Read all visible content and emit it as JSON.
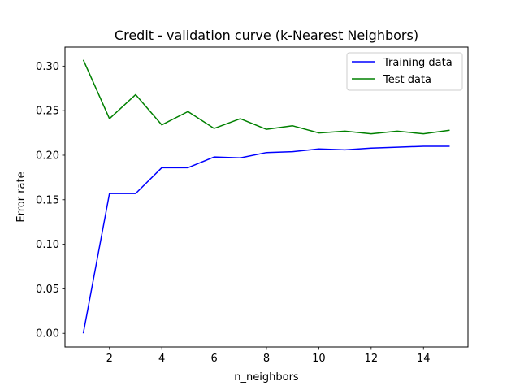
{
  "chart_data": {
    "type": "line",
    "title": "Credit - validation curve (k-Nearest Neighbors)",
    "xlabel": "n_neighbors",
    "ylabel": "Error rate",
    "xlim": [
      0.3,
      15.7
    ],
    "ylim": [
      -0.0153,
      0.3213
    ],
    "xticks": [
      2,
      4,
      6,
      8,
      10,
      12,
      14
    ],
    "yticks": [
      0.0,
      0.05,
      0.1,
      0.15,
      0.2,
      0.25,
      0.3
    ],
    "ytick_labels": [
      "0.00",
      "0.05",
      "0.10",
      "0.15",
      "0.20",
      "0.25",
      "0.30"
    ],
    "grid": false,
    "legend_position": "top-right",
    "x": [
      1,
      2,
      3,
      4,
      5,
      6,
      7,
      8,
      9,
      10,
      11,
      12,
      13,
      14,
      15
    ],
    "series": [
      {
        "name": "Training data",
        "color": "#0000ff",
        "values": [
          0.0,
          0.157,
          0.157,
          0.186,
          0.186,
          0.198,
          0.197,
          0.203,
          0.204,
          0.207,
          0.206,
          0.208,
          0.209,
          0.21,
          0.21
        ]
      },
      {
        "name": "Test data",
        "color": "#008000",
        "values": [
          0.307,
          0.241,
          0.268,
          0.234,
          0.249,
          0.23,
          0.241,
          0.229,
          0.233,
          0.225,
          0.227,
          0.224,
          0.227,
          0.224,
          0.228
        ]
      }
    ]
  }
}
